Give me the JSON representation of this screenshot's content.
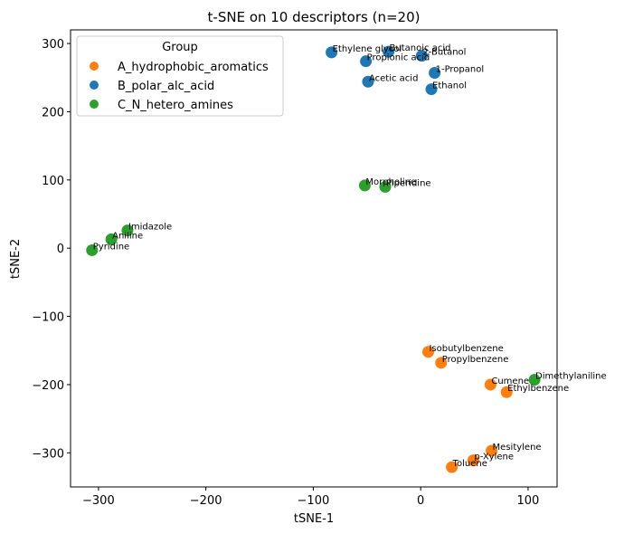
{
  "chart_data": {
    "type": "scatter",
    "title": "t-SNE on 10 descriptors (n=20)",
    "xlabel": "tSNE-1",
    "ylabel": "tSNE-2",
    "xlim": [
      -326,
      127
    ],
    "ylim": [
      -350,
      320
    ],
    "xticks": [
      -300,
      -200,
      -100,
      0,
      100
    ],
    "yticks": [
      -300,
      -200,
      -100,
      0,
      100,
      200,
      300
    ],
    "xtick_labels": [
      "−300",
      "−200",
      "−100",
      "0",
      "100"
    ],
    "ytick_labels": [
      "−300",
      "−200",
      "−100",
      "0",
      "100",
      "200",
      "300"
    ],
    "legend": {
      "title": "Group",
      "placement": "top-left",
      "entries": [
        {
          "name": "A_hydrophobic_aromatics",
          "color": "#ff7f0e"
        },
        {
          "name": "B_polar_alc_acid",
          "color": "#1f77b4"
        },
        {
          "name": "C_N_hetero_amines",
          "color": "#2ca02c"
        }
      ]
    },
    "series": [
      {
        "name": "A_hydrophobic_aromatics",
        "color": "#ff7f0e",
        "points": [
          {
            "label": "Isobutylbenzene",
            "x": 7,
            "y": -152
          },
          {
            "label": "Propylbenzene",
            "x": 19,
            "y": -168
          },
          {
            "label": "Cumene",
            "x": 65,
            "y": -200
          },
          {
            "label": "Ethylbenzene",
            "x": 80,
            "y": -211
          },
          {
            "label": "Mesitylene",
            "x": 66,
            "y": -297
          },
          {
            "label": "p-Xylene",
            "x": 49,
            "y": -311
          },
          {
            "label": "Toluene",
            "x": 29,
            "y": -321
          }
        ]
      },
      {
        "name": "B_polar_alc_acid",
        "color": "#1f77b4",
        "points": [
          {
            "label": "Ethylene glycol",
            "x": -83,
            "y": 287
          },
          {
            "label": "Butanoic acid",
            "x": -30,
            "y": 288
          },
          {
            "label": "Propionic acid",
            "x": -51,
            "y": 274
          },
          {
            "label": "2-Butanol",
            "x": 1,
            "y": 282
          },
          {
            "label": "1-Propanol",
            "x": 13,
            "y": 257
          },
          {
            "label": "Acetic acid",
            "x": -49,
            "y": 244
          },
          {
            "label": "Ethanol",
            "x": 10,
            "y": 233
          }
        ]
      },
      {
        "name": "C_N_hetero_amines",
        "color": "#2ca02c",
        "points": [
          {
            "label": "Morpholine",
            "x": -52,
            "y": 92
          },
          {
            "label": "Piperidine",
            "x": -33,
            "y": 90
          },
          {
            "label": "Imidazole",
            "x": -273,
            "y": 26
          },
          {
            "label": "Aniline",
            "x": -288,
            "y": 13
          },
          {
            "label": "Pyridine",
            "x": -306,
            "y": -3
          },
          {
            "label": "Dimethylaniline",
            "x": 106,
            "y": -193
          }
        ]
      }
    ]
  }
}
